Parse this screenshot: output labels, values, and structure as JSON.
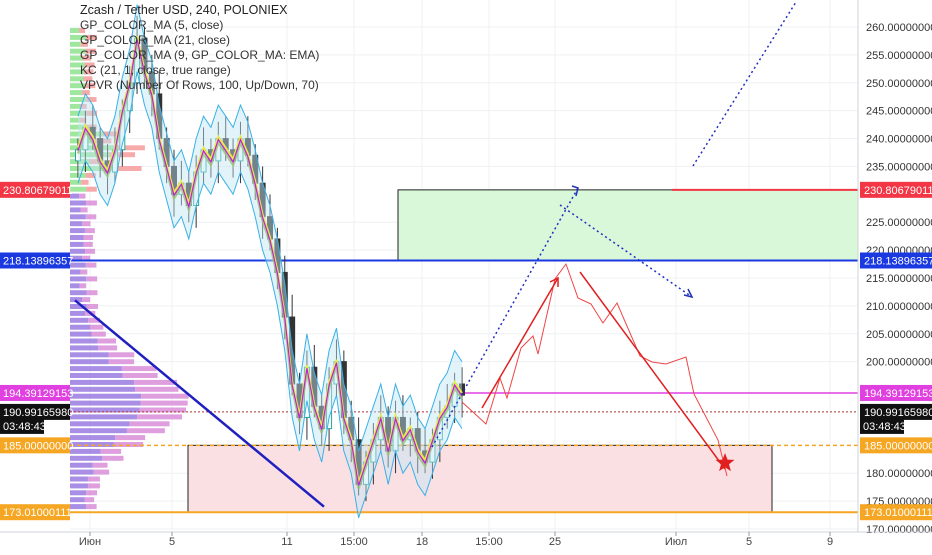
{
  "chart_data": {
    "type": "candlestick",
    "title": "Zcash / Tether USD, 240, POLONIEX",
    "indicators": [
      "GP_COLOR_MA (5, close)",
      "GP_COLOR_MA (21, close)",
      "GP_COLOR_MA (9, GP_COLOR_MA: EMA)",
      "KC (21, 1, close, true range)",
      "VPVR (Number Of Rows, 100, Up/Down, 70)"
    ],
    "ylim": [
      170,
      265
    ],
    "y_ticks": [
      "260.00000000",
      "255.00000000",
      "250.00000000",
      "245.00000000",
      "240.00000000",
      "235.00000000",
      "225.00000000",
      "220.00000000",
      "215.00000000",
      "210.00000000",
      "205.00000000",
      "200.00000000",
      "180.00000000",
      "175.00000000",
      "170.00000000"
    ],
    "x_ticks": [
      "Июн",
      "5",
      "11",
      "15:00",
      "18",
      "15:00",
      "25",
      "Июл",
      "5",
      "9"
    ],
    "price_labels": [
      {
        "value": 230.80679011,
        "text": "230.80679011",
        "color": "#f23645"
      },
      {
        "value": 218.13896357,
        "text": "218.13896357",
        "color": "#1a39e0"
      },
      {
        "value": 194.39129153,
        "text": "194.39129153",
        "color": "#e040e0"
      },
      {
        "value": 190.9916598,
        "text": "190.99165980",
        "color": "#111111"
      },
      {
        "value": 185.0,
        "text": "185.00000000",
        "color": "#f5a623"
      },
      {
        "value": 173.01000111,
        "text": "173.01000111",
        "color": "#f5a623"
      }
    ],
    "countdown": "03:48:43",
    "close_series": [
      238,
      242,
      240,
      236,
      234,
      238,
      245,
      250,
      258,
      252,
      248,
      240,
      235,
      230,
      232,
      228,
      234,
      238,
      236,
      240,
      238,
      236,
      240,
      237,
      232,
      226,
      222,
      216,
      208,
      196,
      190,
      199,
      192,
      188,
      196,
      200,
      190,
      186,
      178,
      182,
      186,
      190,
      184,
      190,
      186,
      188,
      184,
      182,
      186,
      190,
      192,
      196,
      194
    ]
  }
}
